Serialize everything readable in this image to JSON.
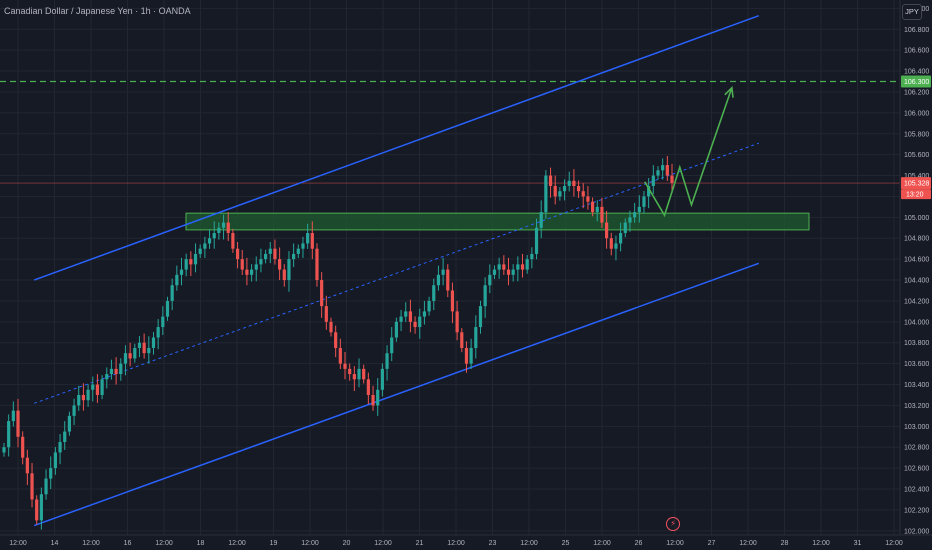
{
  "header": {
    "title": "Canadian Dollar / Japanese Yen · 1h · OANDA",
    "currency_button": "JPY"
  },
  "colors": {
    "background": "#161a25",
    "grid": "#222631",
    "up": "#26a69a",
    "down": "#ef5350",
    "channel": "#2962ff",
    "midline": "#2962ff",
    "zone_fill": "#1e5c2f",
    "zone_stroke": "#4caf50",
    "projection": "#4caf50",
    "target_line": "#4caf50",
    "current_price": "#ef5350"
  },
  "chart_data": {
    "type": "candlestick",
    "title": "Canadian Dollar / Japanese Yen · 1h · OANDA",
    "y_axis": {
      "ticks": [
        "107.000",
        "106.800",
        "106.600",
        "106.400",
        "106.200",
        "106.000",
        "105.800",
        "105.600",
        "105.400",
        "105.200",
        "105.000",
        "104.800",
        "104.600",
        "104.400",
        "104.200",
        "104.000",
        "103.800",
        "103.600",
        "103.400",
        "103.200",
        "103.000",
        "102.800",
        "102.600",
        "102.400",
        "102.200",
        "102.000"
      ],
      "ylim": [
        101.96,
        107.08
      ]
    },
    "x_axis": {
      "ticks": [
        "12:00",
        "14",
        "12:00",
        "16",
        "12:00",
        "18",
        "12:00",
        "19",
        "12:00",
        "20",
        "12:00",
        "21",
        "12:00",
        "23",
        "12:00",
        "25",
        "12:00",
        "26",
        "12:00",
        "27",
        "12:00",
        "28",
        "12:00",
        "31",
        "12:00"
      ]
    },
    "price_tags": {
      "target": "106.300",
      "current": "105.328",
      "countdown": "13:20"
    },
    "zone": {
      "low": 104.88,
      "high": 105.04
    },
    "channel": {
      "upper": [
        [
          0.038,
          104.4
        ],
        [
          0.845,
          106.93
        ]
      ],
      "lower": [
        [
          0.038,
          102.05
        ],
        [
          0.845,
          104.56
        ]
      ],
      "mid": [
        [
          0.038,
          103.22
        ],
        [
          0.845,
          105.71
        ]
      ]
    },
    "target_level": 106.3,
    "projection": [
      [
        0.718,
        105.34
      ],
      [
        0.74,
        105.02
      ],
      [
        0.757,
        105.48
      ],
      [
        0.77,
        105.12
      ],
      [
        0.815,
        106.24
      ]
    ],
    "closes": [
      102.8,
      103.05,
      103.15,
      102.9,
      102.7,
      102.55,
      102.3,
      102.1,
      102.35,
      102.5,
      102.6,
      102.75,
      102.85,
      102.95,
      103.1,
      103.2,
      103.3,
      103.25,
      103.35,
      103.4,
      103.3,
      103.45,
      103.5,
      103.55,
      103.5,
      103.6,
      103.7,
      103.65,
      103.75,
      103.8,
      103.7,
      103.75,
      103.85,
      103.95,
      104.05,
      104.2,
      104.35,
      104.45,
      104.5,
      104.6,
      104.55,
      104.65,
      104.7,
      104.75,
      104.8,
      104.85,
      104.9,
      104.95,
      104.85,
      104.7,
      104.6,
      104.5,
      104.45,
      104.5,
      104.55,
      104.6,
      104.65,
      104.7,
      104.6,
      104.5,
      104.4,
      104.6,
      104.65,
      104.7,
      104.75,
      104.85,
      104.7,
      104.4,
      104.15,
      104.0,
      103.9,
      103.75,
      103.6,
      103.55,
      103.5,
      103.45,
      103.55,
      103.45,
      103.3,
      103.2,
      103.35,
      103.55,
      103.7,
      103.85,
      104.0,
      104.05,
      104.1,
      104.0,
      103.95,
      104.05,
      104.1,
      104.2,
      104.35,
      104.45,
      104.5,
      104.3,
      104.1,
      103.9,
      103.75,
      103.6,
      103.75,
      103.95,
      104.15,
      104.35,
      104.45,
      104.5,
      104.55,
      104.5,
      104.45,
      104.5,
      104.55,
      104.5,
      104.6,
      104.65,
      104.9,
      105.05,
      105.4,
      105.3,
      105.2,
      105.25,
      105.3,
      105.35,
      105.3,
      105.25,
      105.2,
      105.15,
      105.05,
      105.1,
      104.95,
      104.8,
      104.7,
      104.75,
      104.85,
      104.95,
      105.0,
      105.05,
      105.1,
      105.2,
      105.3,
      105.4,
      105.45,
      105.5,
      105.4,
      105.33
    ]
  }
}
